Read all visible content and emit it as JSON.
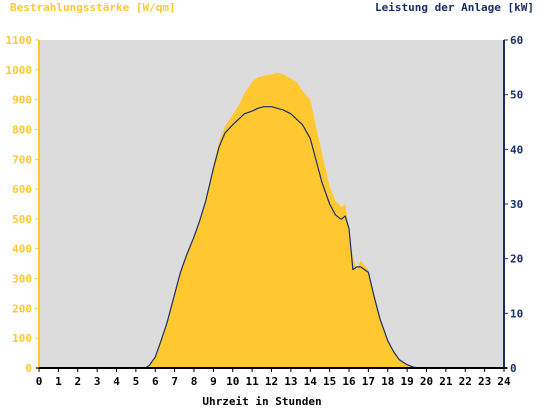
{
  "colors": {
    "irradiance": "#ffc830",
    "power": "#1a2f66",
    "plot_background": "#dcdcdc",
    "left_axis_text": "#ffc830",
    "right_axis_text": "#1a2f66",
    "x_axis_text": "#000000"
  },
  "chart_data": {
    "type": "area",
    "title": "",
    "xlabel": "Uhrzeit in Stunden",
    "ylabel_left": "Bestrahlungsstärke [W/qm]",
    "ylabel_right": "Leistung der Anlage [kW]",
    "xlim": [
      0,
      24
    ],
    "ylim_left": [
      0,
      1100
    ],
    "ylim_right": [
      0,
      60
    ],
    "x_ticks": [
      "0",
      "1",
      "2",
      "3",
      "4",
      "5",
      "6",
      "7",
      "8",
      "9",
      "10",
      "11",
      "12",
      "13",
      "14",
      "15",
      "16",
      "17",
      "18",
      "19",
      "20",
      "21",
      "22",
      "23",
      "24"
    ],
    "y_ticks_left": [
      "0",
      "100",
      "200",
      "300",
      "400",
      "500",
      "600",
      "700",
      "800",
      "900",
      "1000",
      "1100"
    ],
    "y_ticks_right": [
      "0",
      "10",
      "20",
      "30",
      "40",
      "50",
      "60"
    ],
    "grid": false,
    "series": [
      {
        "name": "Bestrahlungsstärke [W/qm]",
        "axis": "left",
        "style": "filled area",
        "x": [
          0,
          5.5,
          5.7,
          6.0,
          6.3,
          6.6,
          7.0,
          7.3,
          7.6,
          8.0,
          8.3,
          8.6,
          9.0,
          9.3,
          9.6,
          10.0,
          10.3,
          10.6,
          11.0,
          11.3,
          11.6,
          12.0,
          12.3,
          12.6,
          13.0,
          13.3,
          13.6,
          14.0,
          14.3,
          14.6,
          15.0,
          15.3,
          15.6,
          15.8,
          16.0,
          16.2,
          16.4,
          16.6,
          17.0,
          17.3,
          17.6,
          18.0,
          18.3,
          18.6,
          19.0,
          19.3,
          19.6,
          24
        ],
        "y": [
          0,
          0,
          10,
          40,
          90,
          150,
          250,
          320,
          380,
          440,
          500,
          560,
          680,
          760,
          810,
          850,
          880,
          920,
          960,
          975,
          980,
          985,
          990,
          985,
          970,
          960,
          930,
          900,
          810,
          720,
          610,
          560,
          540,
          550,
          470,
          370,
          330,
          360,
          330,
          250,
          170,
          90,
          60,
          30,
          10,
          3,
          0,
          0
        ]
      },
      {
        "name": "Leistung der Anlage [kW]",
        "axis": "right",
        "style": "line",
        "x": [
          0,
          5.5,
          5.7,
          6.0,
          6.3,
          6.6,
          7.0,
          7.3,
          7.6,
          8.0,
          8.3,
          8.6,
          9.0,
          9.3,
          9.6,
          10.0,
          10.3,
          10.6,
          11.0,
          11.3,
          11.6,
          12.0,
          12.3,
          12.6,
          13.0,
          13.3,
          13.6,
          14.0,
          14.3,
          14.6,
          15.0,
          15.3,
          15.6,
          15.8,
          16.0,
          16.2,
          16.4,
          16.6,
          17.0,
          17.3,
          17.6,
          18.0,
          18.3,
          18.6,
          19.0,
          19.3,
          19.6,
          24
        ],
        "y": [
          0,
          0,
          0.5,
          2,
          5,
          8.2,
          13.5,
          17.5,
          20.5,
          24,
          27,
          30.5,
          36.5,
          40.5,
          43,
          44.5,
          45.5,
          46.5,
          47,
          47.5,
          47.8,
          47.8,
          47.5,
          47.2,
          46.5,
          45.5,
          44.5,
          42,
          38,
          34,
          30,
          28,
          27.2,
          27.8,
          25.5,
          18,
          18.5,
          18.5,
          17.5,
          13,
          9,
          5,
          3,
          1.5,
          0.6,
          0.2,
          0,
          0
        ]
      }
    ]
  }
}
